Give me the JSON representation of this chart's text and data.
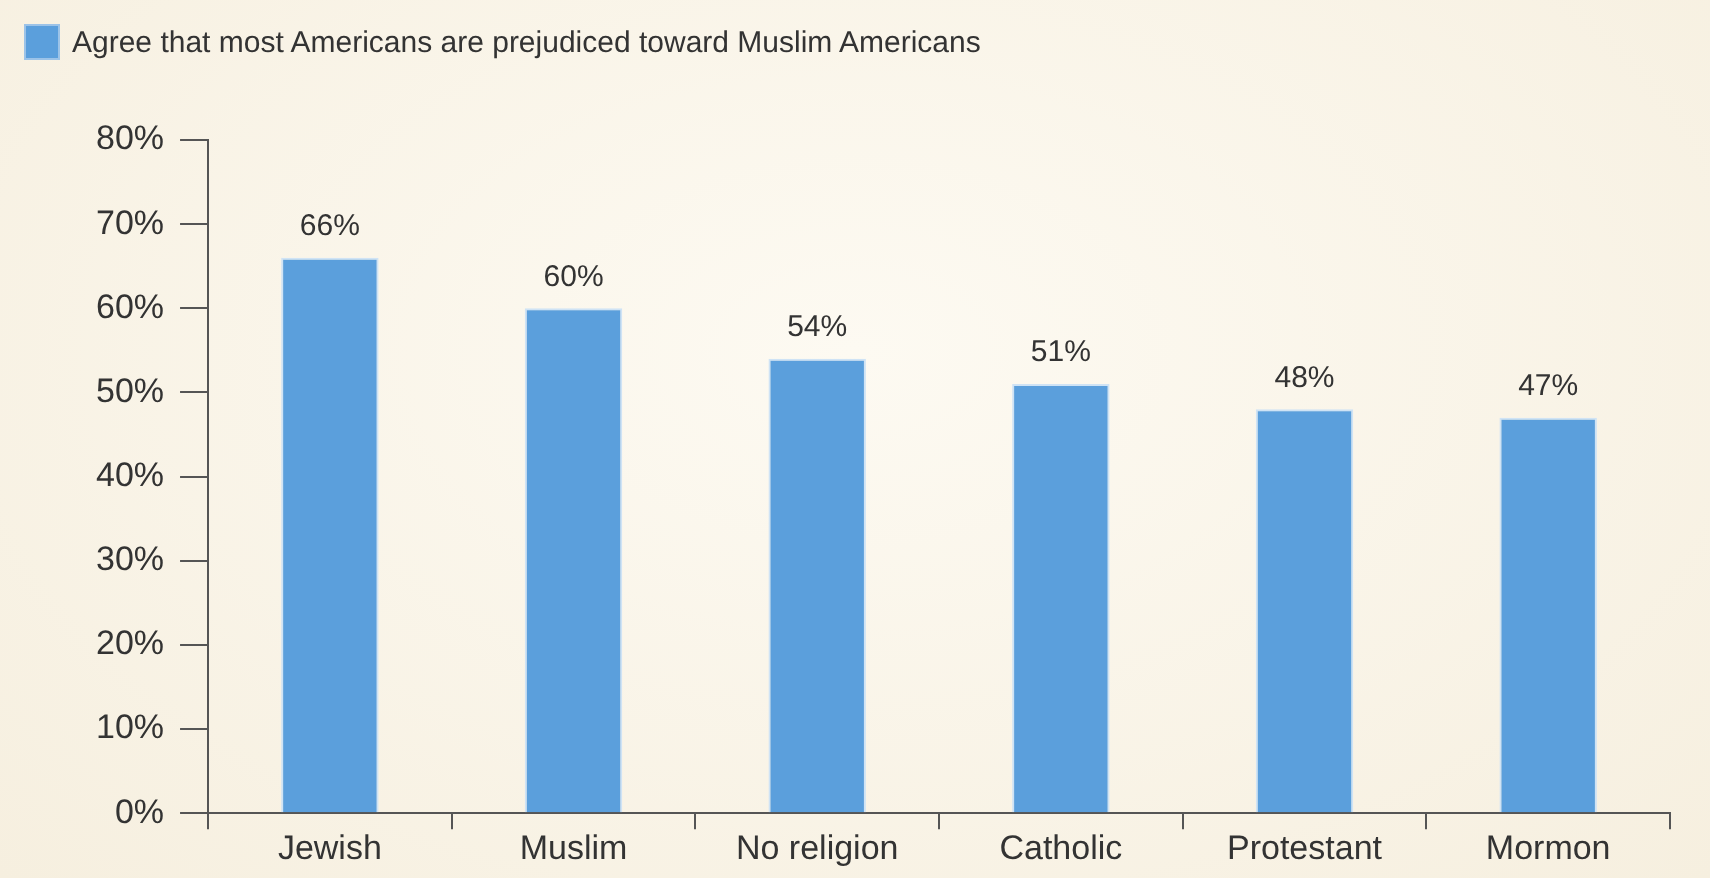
{
  "chart_data": {
    "type": "bar",
    "categories": [
      "Jewish",
      "Muslim",
      "No religion",
      "Catholic",
      "Protestant",
      "Mormon"
    ],
    "series": [
      {
        "name": "Agree that most Americans are prejudiced toward Muslim Americans",
        "color": "#5b9fdc",
        "values": [
          66,
          60,
          54,
          51,
          48,
          47
        ],
        "value_labels": [
          "66%",
          "60%",
          "54%",
          "51%",
          "48%",
          "47%"
        ]
      }
    ],
    "ylim": [
      0,
      80
    ],
    "yticks": [
      {
        "value": 0,
        "label": "0%"
      },
      {
        "value": 10,
        "label": "10%"
      },
      {
        "value": 20,
        "label": "20%"
      },
      {
        "value": 30,
        "label": "30%"
      },
      {
        "value": 40,
        "label": "40%"
      },
      {
        "value": 50,
        "label": "50%"
      },
      {
        "value": 60,
        "label": "60%"
      },
      {
        "value": 70,
        "label": "70%"
      },
      {
        "value": 80,
        "label": "80%"
      }
    ],
    "grid": false,
    "legend": "top left"
  }
}
